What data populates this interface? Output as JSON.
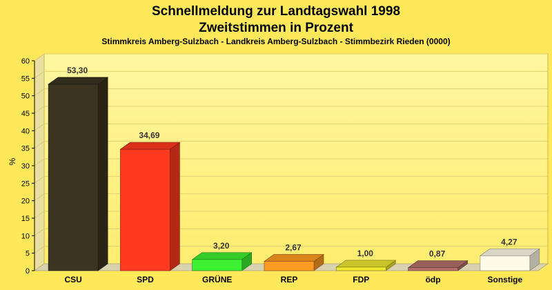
{
  "chart_data": {
    "type": "bar",
    "title": "Schnellmeldung zur Landtagswahl 1998",
    "subtitle": "Zweitstimmen in Prozent",
    "subtitle2": "Stimmkreis Amberg-Sulzbach - Landkreis Amberg-Sulzbach - Stimmbezirk Rieden (0000)",
    "ylabel": "%",
    "ylim": [
      0,
      60
    ],
    "yticks": [
      0,
      5,
      10,
      15,
      20,
      25,
      30,
      35,
      40,
      45,
      50,
      55,
      60
    ],
    "categories": [
      "CSU",
      "SPD",
      "GRÜNE",
      "REP",
      "FDP",
      "ödp",
      "Sonstige"
    ],
    "values": [
      53.3,
      34.69,
      3.2,
      2.67,
      1.0,
      0.87,
      4.27
    ],
    "value_labels": [
      "53,30",
      "34,69",
      "3,20",
      "2,67",
      "1,00",
      "0,87",
      "4,27"
    ],
    "colors": [
      "#3a3420",
      "#ff3a1f",
      "#3cf032",
      "#ff9a22",
      "#f0e830",
      "#b4706a",
      "#fffbe8"
    ],
    "grid": true
  }
}
